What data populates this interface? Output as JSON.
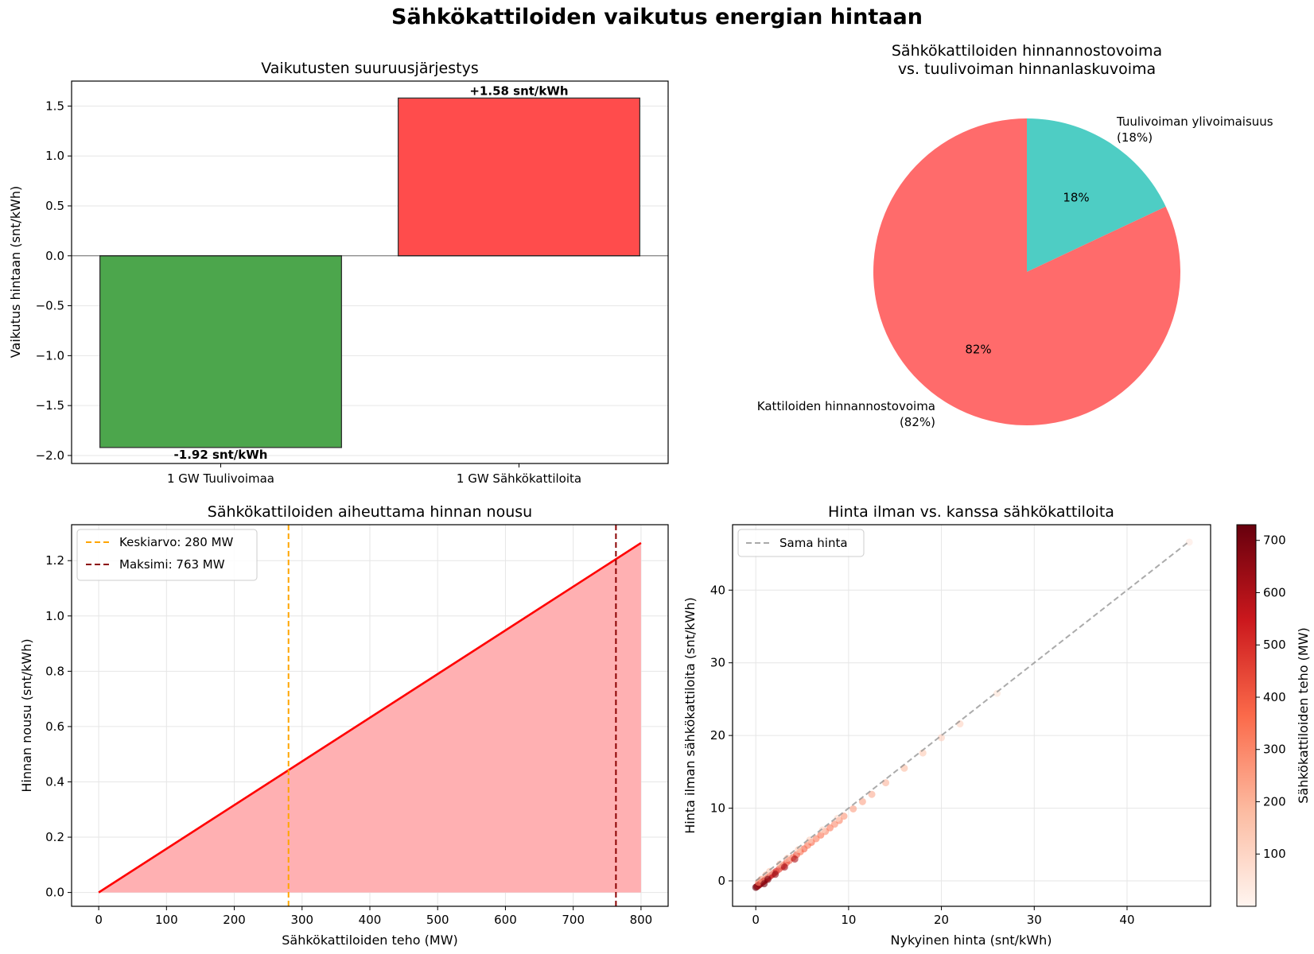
{
  "figure": {
    "title": "Sähkökattiloiden vaikutus energian hintaan"
  },
  "chart_data": [
    {
      "id": "bar",
      "type": "bar",
      "title": "Vaikutusten suuruusjärjestys",
      "ylabel": "Vaikutus hintaan (snt/kWh)",
      "categories": [
        "1 GW Tuulivoimaa",
        "1 GW Sähkökattiloita"
      ],
      "values": [
        -1.92,
        1.58
      ],
      "value_labels": [
        "-1.92 snt/kWh",
        "+1.58 snt/kWh"
      ],
      "colors": [
        "#4ca64c",
        "#ff4c4c"
      ],
      "ylim": [
        -2.08,
        1.75
      ],
      "yticks": [
        -2.0,
        -1.5,
        -1.0,
        -0.5,
        0.0,
        0.5,
        1.0,
        1.5
      ],
      "ytick_labels": [
        "−2.0",
        "−1.5",
        "−1.0",
        "−0.5",
        "0.0",
        "0.5",
        "1.0",
        "1.5"
      ],
      "grid": true
    },
    {
      "id": "pie",
      "type": "pie",
      "title_lines": [
        "Sähkökattiloiden hinnannostovoima",
        "vs. tuulivoiman hinnanlaskuvoima"
      ],
      "slices": [
        {
          "label_lines": [
            "Tuulivoiman ylivoimaisuus",
            "(18%)"
          ],
          "value": 18,
          "pct_label": "18%",
          "color": "#4ecdc4"
        },
        {
          "label_lines": [
            "Kattiloiden hinnannostovoima",
            "(82%)"
          ],
          "value": 82,
          "pct_label": "82%",
          "color": "#ff6b6b"
        }
      ]
    },
    {
      "id": "line",
      "type": "area",
      "title": "Sähkökattiloiden aiheuttama hinnan nousu",
      "xlabel": "Sähkökattiloiden teho (MW)",
      "ylabel": "Hinnan nousu (snt/kWh)",
      "x": [
        0,
        800
      ],
      "y": [
        0.0,
        1.264
      ],
      "xlim": [
        -40,
        840
      ],
      "ylim": [
        -0.05,
        1.33
      ],
      "xticks": [
        0,
        100,
        200,
        300,
        400,
        500,
        600,
        700,
        800
      ],
      "yticks": [
        0.0,
        0.2,
        0.4,
        0.6,
        0.8,
        1.0,
        1.2
      ],
      "ytick_labels": [
        "0.0",
        "0.2",
        "0.4",
        "0.6",
        "0.8",
        "1.0",
        "1.2"
      ],
      "line_color": "#ff0000",
      "fill_color": "#ffb0b2",
      "vlines": [
        {
          "x": 280,
          "label": "Keskiarvo: 280 MW",
          "color": "#ffa500"
        },
        {
          "x": 763,
          "label": "Maksimi: 763 MW",
          "color": "#8b0000"
        }
      ],
      "grid": true
    },
    {
      "id": "scatter",
      "type": "scatter",
      "title": "Hinta ilman vs. kanssa sähkökattiloita",
      "xlabel": "Nykyinen hinta (snt/kWh)",
      "ylabel": "Hinta ilman sähkökattiloita (snt/kWh)",
      "xlim": [
        -2.5,
        49
      ],
      "ylim": [
        -3.5,
        49
      ],
      "xticks": [
        0,
        10,
        20,
        30,
        40
      ],
      "yticks": [
        0,
        10,
        20,
        30,
        40
      ],
      "reference_line": {
        "label": "Sama hinta",
        "from": [
          0,
          0
        ],
        "to": [
          46.6,
          46.6
        ]
      },
      "colorbar": {
        "label": "Sähkökattiloiden teho (MW)",
        "min": 0,
        "max": 730,
        "ticks": [
          100,
          200,
          300,
          400,
          500,
          600,
          700
        ]
      },
      "points": [
        [
          0.0,
          -0.9,
          720
        ],
        [
          0.1,
          -0.8,
          700
        ],
        [
          0.2,
          -0.7,
          650
        ],
        [
          0.3,
          -0.6,
          600
        ],
        [
          0.4,
          -0.5,
          690
        ],
        [
          0.5,
          -0.4,
          640
        ],
        [
          0.6,
          -0.3,
          560
        ],
        [
          0.7,
          -0.2,
          620
        ],
        [
          0.8,
          -0.1,
          580
        ],
        [
          0.9,
          0.0,
          530
        ],
        [
          1.0,
          0.1,
          600
        ],
        [
          1.2,
          0.3,
          550
        ],
        [
          1.4,
          0.5,
          500
        ],
        [
          1.6,
          0.7,
          560
        ],
        [
          1.8,
          0.9,
          520
        ],
        [
          2.0,
          1.1,
          480
        ],
        [
          2.2,
          1.3,
          500
        ],
        [
          2.5,
          1.6,
          460
        ],
        [
          2.8,
          1.9,
          430
        ],
        [
          3.0,
          2.1,
          470
        ],
        [
          3.3,
          2.5,
          420
        ],
        [
          3.6,
          2.8,
          400
        ],
        [
          4.0,
          3.2,
          380
        ],
        [
          4.4,
          3.6,
          420
        ],
        [
          4.8,
          4.0,
          360
        ],
        [
          5.2,
          4.4,
          390
        ],
        [
          5.6,
          4.9,
          340
        ],
        [
          6.0,
          5.3,
          370
        ],
        [
          6.5,
          5.8,
          320
        ],
        [
          7.0,
          6.3,
          350
        ],
        [
          7.5,
          6.8,
          300
        ],
        [
          8.0,
          7.3,
          330
        ],
        [
          8.5,
          7.8,
          290
        ],
        [
          9.0,
          8.3,
          310
        ],
        [
          9.5,
          8.9,
          270
        ],
        [
          10.5,
          9.9,
          250
        ],
        [
          11.5,
          10.9,
          240
        ],
        [
          12.5,
          11.9,
          220
        ],
        [
          14.0,
          13.5,
          200
        ],
        [
          16.0,
          15.5,
          180
        ],
        [
          18.0,
          17.6,
          140
        ],
        [
          20.0,
          19.7,
          120
        ],
        [
          22.0,
          21.6,
          110
        ],
        [
          26.0,
          25.8,
          60
        ],
        [
          46.7,
          46.6,
          40
        ],
        [
          0.3,
          -0.2,
          300
        ],
        [
          0.6,
          0.2,
          250
        ],
        [
          1.1,
          0.8,
          200
        ],
        [
          1.5,
          1.3,
          150
        ],
        [
          2.6,
          2.3,
          180
        ],
        [
          3.4,
          3.1,
          160
        ],
        [
          4.6,
          4.3,
          140
        ],
        [
          5.8,
          5.6,
          120
        ],
        [
          7.2,
          7.0,
          100
        ],
        [
          8.8,
          8.6,
          90
        ],
        [
          1.3,
          0.2,
          690
        ],
        [
          2.1,
          0.9,
          650
        ],
        [
          3.1,
          1.9,
          620
        ],
        [
          4.2,
          3.0,
          600
        ],
        [
          0.9,
          -0.4,
          710
        ]
      ]
    }
  ]
}
